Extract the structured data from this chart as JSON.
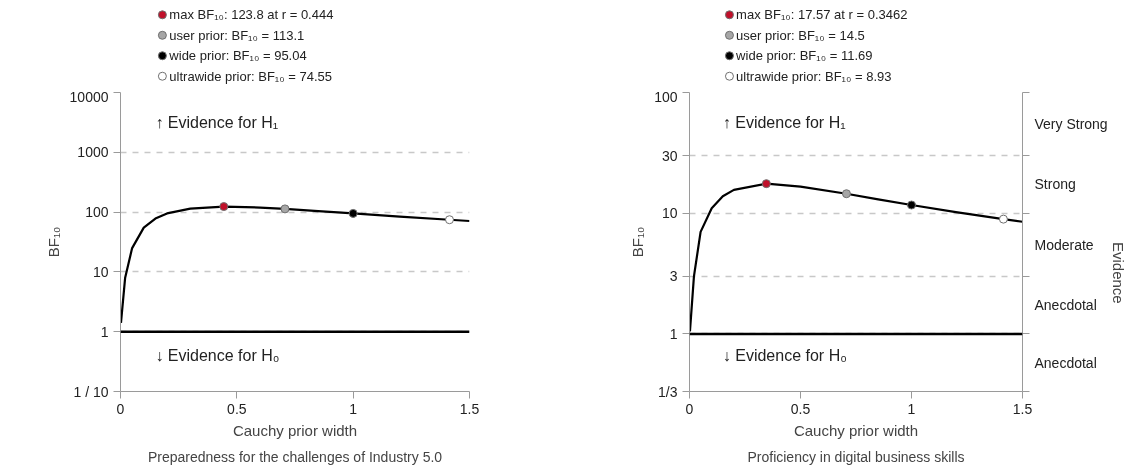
{
  "chart_data": [
    {
      "type": "line",
      "xlabel": "Cauchy prior width",
      "ylabel": "BF₁₀",
      "log": "y",
      "xlim": [
        0,
        1.5
      ],
      "xticks": [
        0,
        0.5,
        1,
        1.5
      ],
      "ylim": [
        0.1,
        10000
      ],
      "yticks": [
        {
          "value": 0.1,
          "label": "1 / 10"
        },
        1,
        10,
        100,
        1000,
        10000
      ],
      "grid": "y",
      "legend": "top left",
      "ref_lines": [
        {
          "axis": "y",
          "value": 1,
          "color": "#000000",
          "line_style": "solid"
        }
      ],
      "annotations": [
        "↑ Evidence for H₁",
        "↓ Evidence for H₀",
        "Preparedness for the challenges of Industry 5.0"
      ],
      "series": [
        {
          "color": "#000000",
          "x": [
            0.002,
            0.02,
            0.05,
            0.1,
            0.15,
            0.2,
            0.3,
            0.444,
            0.6,
            0.707,
            0.85,
            1.0,
            1.2,
            1.414,
            1.5
          ],
          "values": [
            1.4,
            8,
            25,
            55,
            78,
            95,
            114,
            123.8,
            119,
            113.1,
            104,
            95.04,
            84,
            74.55,
            71
          ]
        },
        {
          "type": "scatter",
          "name": "max BF₁₀: 123.8 at r = 0.444",
          "color": "#c0102a",
          "marker": "circle",
          "x": [
            0.444
          ],
          "values": [
            123.8
          ]
        },
        {
          "type": "scatter",
          "name": "user prior: BF₁₀ = 113.1",
          "color": "#a6a6a6",
          "marker": "circle",
          "x": [
            0.707
          ],
          "values": [
            113.1
          ]
        },
        {
          "type": "scatter",
          "name": "wide prior: BF₁₀ = 95.04",
          "color": "#000000",
          "marker": "circle",
          "x": [
            1.0
          ],
          "values": [
            95.04
          ]
        },
        {
          "type": "scatter",
          "name": "ultrawide prior: BF₁₀ = 74.55",
          "color": "#ffffff",
          "marker": "circle",
          "x": [
            1.414
          ],
          "values": [
            74.55
          ]
        }
      ]
    },
    {
      "type": "line",
      "xlabel": "Cauchy prior width",
      "ylabel": "BF₁₀",
      "y2label": "Evidence",
      "log": "y",
      "xlim": [
        0,
        1.5
      ],
      "xticks": [
        0,
        0.5,
        1,
        1.5
      ],
      "ylim": [
        0.3333,
        100
      ],
      "yticks": [
        {
          "value": 0.3333,
          "label": "1/3"
        },
        1,
        3,
        10,
        30,
        100
      ],
      "grid": "y",
      "legend": "top left",
      "ref_lines": [
        {
          "axis": "y",
          "value": 1,
          "color": "#000000",
          "line_style": "solid"
        }
      ],
      "annotations": [
        "↑ Evidence for H₁",
        "↓ Evidence for H₀",
        "Very Strong",
        "Strong",
        "Moderate",
        "Anecdotal",
        "Anecdotal",
        "Proficiency in digital business skills"
      ],
      "series": [
        {
          "color": "#000000",
          "x": [
            0.002,
            0.02,
            0.05,
            0.1,
            0.15,
            0.2,
            0.3462,
            0.5,
            0.707,
            0.85,
            1.0,
            1.2,
            1.414,
            1.5
          ],
          "values": [
            1.05,
            3,
            7,
            11,
            13.8,
            15.6,
            17.57,
            16.6,
            14.5,
            13,
            11.69,
            10.2,
            8.93,
            8.5
          ]
        },
        {
          "type": "scatter",
          "name": "max BF₁₀: 17.57 at r = 0.3462",
          "color": "#c0102a",
          "marker": "circle",
          "x": [
            0.3462
          ],
          "values": [
            17.57
          ]
        },
        {
          "type": "scatter",
          "name": "user prior: BF₁₀ = 14.5",
          "color": "#a6a6a6",
          "marker": "circle",
          "x": [
            0.707
          ],
          "values": [
            14.5
          ]
        },
        {
          "type": "scatter",
          "name": "wide prior: BF₁₀ = 11.69",
          "color": "#000000",
          "marker": "circle",
          "x": [
            1.0
          ],
          "values": [
            11.69
          ]
        },
        {
          "type": "scatter",
          "name": "ultrawide prior: BF₁₀ = 8.93",
          "color": "#ffffff",
          "marker": "circle",
          "x": [
            1.414
          ],
          "values": [
            8.93
          ]
        }
      ]
    }
  ]
}
